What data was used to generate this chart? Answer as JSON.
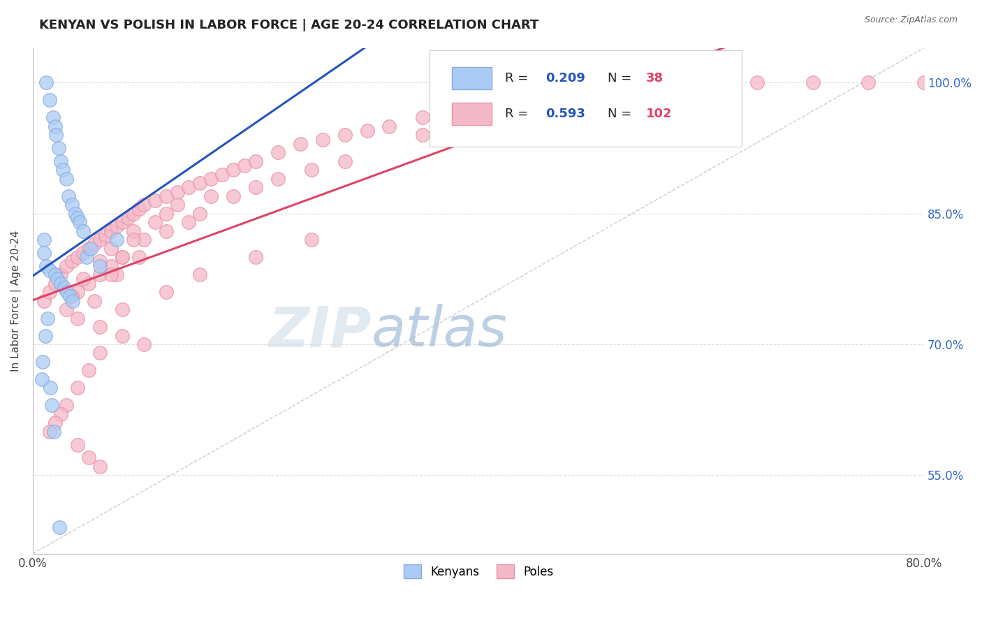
{
  "title": "KENYAN VS POLISH IN LABOR FORCE | AGE 20-24 CORRELATION CHART",
  "source": "Source: ZipAtlas.com",
  "ylabel": "In Labor Force | Age 20-24",
  "xmin": 0.0,
  "xmax": 80.0,
  "ymin": 46.0,
  "ymax": 104.0,
  "yticks": [
    55.0,
    70.0,
    85.0,
    100.0
  ],
  "ytick_labels": [
    "55.0%",
    "70.0%",
    "85.0%",
    "100.0%"
  ],
  "kenyan_color": "#aaccf4",
  "kenyan_edge": "#88aade",
  "polish_color": "#f5b8c8",
  "polish_edge": "#e890a8",
  "kenyan_trend_color": "#2255bb",
  "polish_trend_color": "#dd4466",
  "diag_color": "#cccccc",
  "background_color": "#ffffff",
  "grid_color": "#dddddd",
  "title_color": "#222222",
  "source_color": "#666666",
  "watermark_gray": "#d0dce8",
  "watermark_blue": "#88aacc",
  "r_value_color": "#2255bb",
  "n_value_color": "#dd4466",
  "kenyan_x": [
    1.2,
    1.5,
    1.8,
    2.0,
    2.1,
    2.3,
    2.5,
    2.7,
    3.0,
    3.2,
    3.5,
    3.8,
    4.0,
    4.2,
    4.5,
    1.0,
    1.0,
    1.2,
    1.5,
    2.0,
    2.2,
    2.5,
    2.8,
    3.1,
    3.3,
    3.6,
    4.8,
    5.2,
    6.0,
    7.5,
    1.3,
    1.1,
    0.9,
    0.8,
    1.6,
    1.7,
    1.9,
    2.4
  ],
  "kenyan_y": [
    100.0,
    98.0,
    96.0,
    95.0,
    94.0,
    92.5,
    91.0,
    90.0,
    89.0,
    87.0,
    86.0,
    85.0,
    84.5,
    84.0,
    83.0,
    82.0,
    80.5,
    79.0,
    78.5,
    78.0,
    77.5,
    77.0,
    76.5,
    76.0,
    75.5,
    75.0,
    80.0,
    81.0,
    79.0,
    82.0,
    73.0,
    71.0,
    68.0,
    66.0,
    65.0,
    63.0,
    60.0,
    49.0
  ],
  "polish_x": [
    1.0,
    1.5,
    2.0,
    2.5,
    3.0,
    3.5,
    4.0,
    4.5,
    5.0,
    5.5,
    6.0,
    6.5,
    7.0,
    7.5,
    8.0,
    8.5,
    9.0,
    9.5,
    10.0,
    11.0,
    12.0,
    13.0,
    14.0,
    15.0,
    16.0,
    17.0,
    18.0,
    19.0,
    20.0,
    22.0,
    24.0,
    26.0,
    28.0,
    30.0,
    32.0,
    35.0,
    38.0,
    40.0,
    42.0,
    45.0,
    48.0,
    50.0,
    55.0,
    60.0,
    65.0,
    70.0,
    75.0,
    80.0,
    3.0,
    4.0,
    5.0,
    6.0,
    7.0,
    8.0,
    10.0,
    12.0,
    15.0,
    3.5,
    4.5,
    6.0,
    7.0,
    9.0,
    12.0,
    16.0,
    20.0,
    25.0,
    4.0,
    5.5,
    7.5,
    9.5,
    14.0,
    18.0,
    22.0,
    28.0,
    35.0,
    6.0,
    8.0,
    12.0,
    15.0,
    20.0,
    25.0,
    10.0,
    8.0,
    6.0,
    5.0,
    4.0,
    3.0,
    2.5,
    2.0,
    1.5,
    4.0,
    5.0,
    6.0,
    7.0,
    8.0,
    9.0,
    11.0,
    13.0
  ],
  "polish_y": [
    75.0,
    76.0,
    77.0,
    78.0,
    79.0,
    79.5,
    80.0,
    80.5,
    81.0,
    81.5,
    82.0,
    82.5,
    83.0,
    83.5,
    84.0,
    84.5,
    85.0,
    85.5,
    86.0,
    86.5,
    87.0,
    87.5,
    88.0,
    88.5,
    89.0,
    89.5,
    90.0,
    90.5,
    91.0,
    92.0,
    93.0,
    93.5,
    94.0,
    94.5,
    95.0,
    96.0,
    96.5,
    97.0,
    97.5,
    98.0,
    98.5,
    99.0,
    99.5,
    100.0,
    100.0,
    100.0,
    100.0,
    100.0,
    74.0,
    76.0,
    77.0,
    78.0,
    79.0,
    80.0,
    82.0,
    83.0,
    85.0,
    75.5,
    77.5,
    79.5,
    81.0,
    83.0,
    85.0,
    87.0,
    88.0,
    90.0,
    73.0,
    75.0,
    78.0,
    80.0,
    84.0,
    87.0,
    89.0,
    91.0,
    94.0,
    72.0,
    74.0,
    76.0,
    78.0,
    80.0,
    82.0,
    70.0,
    71.0,
    69.0,
    67.0,
    65.0,
    63.0,
    62.0,
    61.0,
    60.0,
    58.5,
    57.0,
    56.0,
    78.0,
    80.0,
    82.0,
    84.0,
    86.0
  ]
}
